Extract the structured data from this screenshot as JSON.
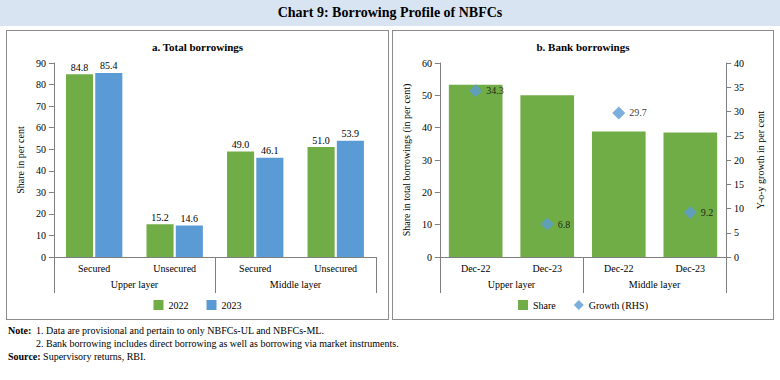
{
  "title": "Chart 9: Borrowing Profile of NBFCs",
  "note_label": "Note:",
  "notes": [
    "1. Data are provisional and pertain to only NBFCs-UL and NBFCs-ML.",
    "2. Bank borrowing includes direct borrowing as well as borrowing via market instruments."
  ],
  "source_label": "Source:",
  "source": "Supervisory returns, RBI.",
  "chart_data": [
    {
      "type": "bar",
      "title": "a. Total borrowings",
      "categories": [
        "Secured",
        "Unsecured",
        "Secured",
        "Unsecured"
      ],
      "category_groups": [
        "Upper layer",
        "Middle layer"
      ],
      "ylabel": "Share in per cent",
      "ylim": [
        0,
        90
      ],
      "yticks": [
        0,
        10,
        20,
        30,
        40,
        50,
        60,
        70,
        80,
        90
      ],
      "grid": false,
      "legend": "bottom",
      "data_labels": true,
      "series": [
        {
          "name": "2022",
          "color": "#70ad47",
          "values": [
            84.8,
            15.2,
            49.0,
            51.0
          ],
          "value_labels": [
            "84.8",
            "15.2",
            "49.0",
            "51.0"
          ]
        },
        {
          "name": "2023",
          "color": "#5b9bd5",
          "values": [
            85.4,
            14.6,
            46.1,
            53.9
          ],
          "value_labels": [
            "85.4",
            "14.6",
            "46.1",
            "53.9"
          ]
        }
      ]
    },
    {
      "type": "bar",
      "title": "b. Bank borrowings",
      "categories": [
        "Dec-22",
        "Dec-23",
        "Dec-22",
        "Dec-23"
      ],
      "category_groups": [
        "Upper layer",
        "Middle layer"
      ],
      "ylabel": "Share in total borrowings (in per cent)",
      "y2label": "Y-o-y growth in per cent",
      "ylim": [
        0,
        60
      ],
      "yticks": [
        0,
        10,
        20,
        30,
        40,
        50,
        60
      ],
      "y2lim": [
        0,
        40
      ],
      "y2ticks": [
        0,
        5,
        10,
        15,
        20,
        25,
        30,
        35,
        40
      ],
      "grid": false,
      "legend": "bottom",
      "series": [
        {
          "name": "Share",
          "type": "bar",
          "color": "#70ad47",
          "values": [
            53.3,
            50.0,
            38.8,
            38.5
          ]
        },
        {
          "name": "Growth (RHS)",
          "type": "scatter",
          "marker": "diamond",
          "axis": "y2",
          "color": "#5b9bd5",
          "data_labels": true,
          "values": [
            34.3,
            6.8,
            29.7,
            9.2
          ]
        }
      ]
    }
  ]
}
